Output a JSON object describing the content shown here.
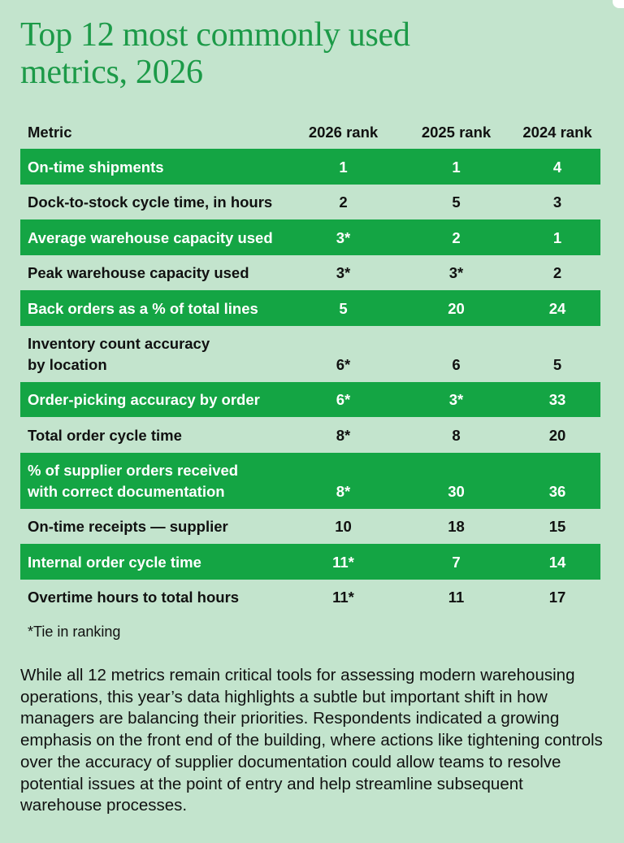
{
  "title_line1": "Top 12 most commonly used",
  "title_line2": "metrics, 2026",
  "table": {
    "headers": {
      "metric": "Metric",
      "rank_2026": "2026 rank",
      "rank_2025": "2025 rank",
      "rank_2024": "2024 rank"
    },
    "rows": [
      {
        "metric_line1": "On-time shipments",
        "metric_line2": "",
        "rank_2026": "1",
        "rank_2025": "1",
        "rank_2024": "4"
      },
      {
        "metric_line1": "Dock-to-stock cycle time, in hours",
        "metric_line2": "",
        "rank_2026": "2",
        "rank_2025": "5",
        "rank_2024": "3"
      },
      {
        "metric_line1": "Average warehouse capacity used",
        "metric_line2": "",
        "rank_2026": "3*",
        "rank_2025": "2",
        "rank_2024": "1"
      },
      {
        "metric_line1": "Peak warehouse capacity used",
        "metric_line2": "",
        "rank_2026": "3*",
        "rank_2025": "3*",
        "rank_2024": "2"
      },
      {
        "metric_line1": "Back orders as a % of total lines",
        "metric_line2": "",
        "rank_2026": "5",
        "rank_2025": "20",
        "rank_2024": "24"
      },
      {
        "metric_line1": "Inventory count accuracy",
        "metric_line2": "by location",
        "rank_2026": "6*",
        "rank_2025": "6",
        "rank_2024": "5"
      },
      {
        "metric_line1": "Order-picking accuracy by order",
        "metric_line2": "",
        "rank_2026": "6*",
        "rank_2025": "3*",
        "rank_2024": "33"
      },
      {
        "metric_line1": "Total order cycle time",
        "metric_line2": "",
        "rank_2026": "8*",
        "rank_2025": "8",
        "rank_2024": "20"
      },
      {
        "metric_line1": "% of supplier orders received",
        "metric_line2": "with correct documentation",
        "rank_2026": "8*",
        "rank_2025": "30",
        "rank_2024": "36"
      },
      {
        "metric_line1": "On-time receipts — supplier",
        "metric_line2": "",
        "rank_2026": "10",
        "rank_2025": "18",
        "rank_2024": "15"
      },
      {
        "metric_line1": "Internal order cycle time",
        "metric_line2": "",
        "rank_2026": "11*",
        "rank_2025": "7",
        "rank_2024": "14"
      },
      {
        "metric_line1": "Overtime hours to total hours",
        "metric_line2": "",
        "rank_2026": "11*",
        "rank_2025": "11",
        "rank_2024": "17"
      }
    ]
  },
  "footnote": "*Tie in ranking",
  "body_text": "While all 12 metrics remain critical tools for assessing modern warehousing operations, this year’s data highlights a subtle but important shift in how managers are balancing their priorities. Respondents indicated a growing emphasis on the front end of the building, where actions like tightening controls over the accuracy of supplier documentation could allow teams to resolve potential issues at the point of entry and help streamline subsequent warehouse processes.",
  "colors": {
    "background": "#c3e4cd",
    "accent_green": "#14a544",
    "title_green": "#1c9a48"
  }
}
